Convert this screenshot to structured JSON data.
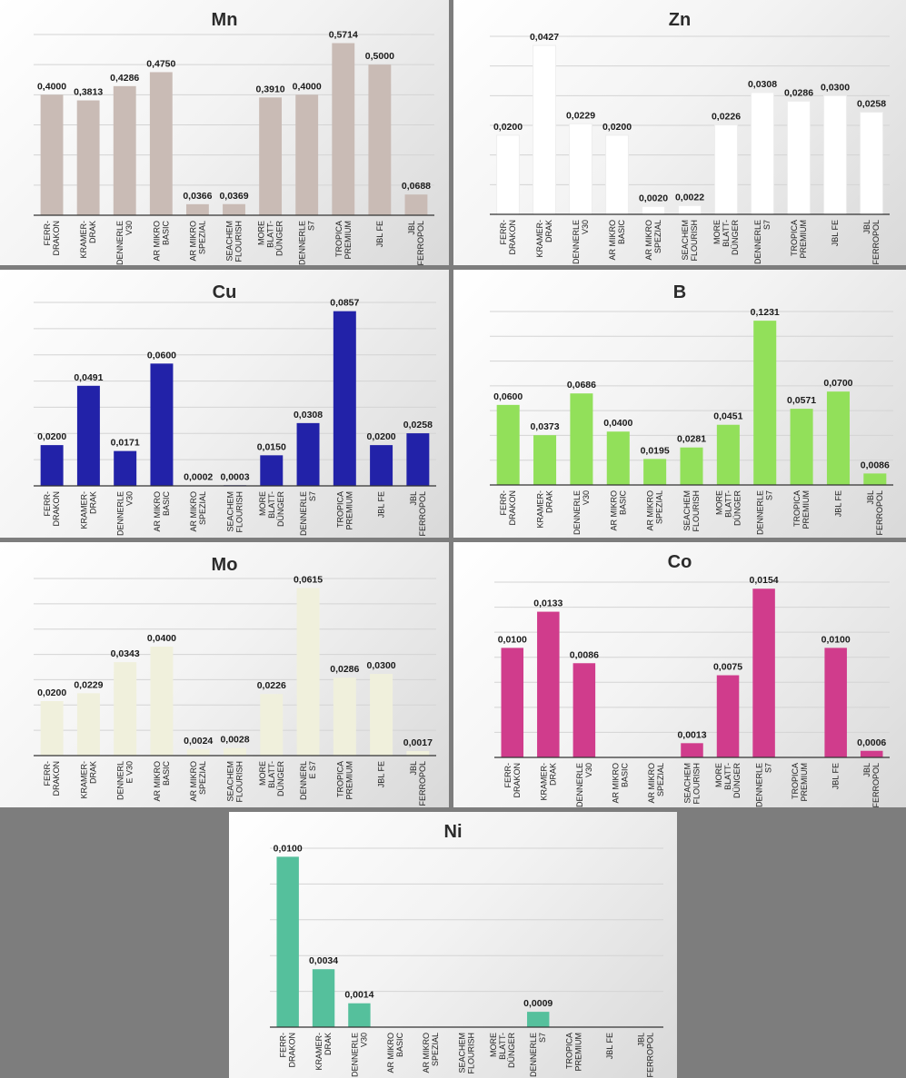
{
  "chart_data": [
    {
      "type": "bar",
      "title": "Mn",
      "color": "#c9bbb5",
      "categories": [
        [
          "FERR-",
          "DRAKON"
        ],
        [
          "KRAMER-",
          "DRAK"
        ],
        [
          "DENNERLE",
          "V30"
        ],
        [
          "AR MIKRO",
          "BASIC"
        ],
        [
          "AR MIKRO",
          "SPEZIAL"
        ],
        [
          "SEACHEM",
          "FLOURISH"
        ],
        [
          "MORE",
          "BLATT-",
          "DÜNGER"
        ],
        [
          "DENNERLE",
          "S7"
        ],
        [
          "TROPICA",
          "PREMIUM"
        ],
        [
          "JBL FE"
        ],
        [
          "JBL",
          "FERROPOL"
        ]
      ],
      "values": [
        0.4,
        0.3813,
        0.4286,
        0.475,
        0.0366,
        0.0369,
        0.391,
        0.4,
        0.5714,
        0.5,
        0.0688
      ],
      "labels": [
        "0,4000",
        "0,3813",
        "0,4286",
        "0,4750",
        "0,0366",
        "0,0369",
        "0,3910",
        "0,4000",
        "0,5714",
        "0,5000",
        "0,0688"
      ],
      "ylim": [
        0,
        0.6
      ],
      "grid": true
    },
    {
      "type": "bar",
      "title": "Zn",
      "color": "#ffffff",
      "categories": [
        [
          "FERR-",
          "DRAKON"
        ],
        [
          "KRAMER-",
          "DRAK"
        ],
        [
          "DENNERLE",
          "V30"
        ],
        [
          "AR MIKRO",
          "BASIC"
        ],
        [
          "AR MIKRO",
          "SPEZIAL"
        ],
        [
          "SEACHEM",
          "FLOURISH"
        ],
        [
          "MORE",
          "BLATT-",
          "DÜNGER"
        ],
        [
          "DENNERLE",
          "S7"
        ],
        [
          "TROPICA",
          "PREMIUM"
        ],
        [
          "JBL FE"
        ],
        [
          "JBL",
          "FERROPOL"
        ]
      ],
      "values": [
        0.02,
        0.0427,
        0.0229,
        0.02,
        0.002,
        0.0022,
        0.0226,
        0.0308,
        0.0286,
        0.03,
        0.0258
      ],
      "labels": [
        "0,0200",
        "0,0427",
        "0,0229",
        "0,0200",
        "0,0020",
        "0,0022",
        "0,0226",
        "0,0308",
        "0,0286",
        "0,0300",
        "0,0258"
      ],
      "ylim": [
        0,
        0.045
      ],
      "grid": true
    },
    {
      "type": "bar",
      "title": "Cu",
      "color": "#2222a8",
      "categories": [
        [
          "FERR-",
          "DRAKON"
        ],
        [
          "KRAMER-",
          "DRAK"
        ],
        [
          "DENNERLE",
          "V30"
        ],
        [
          "AR MIKRO",
          "BASIC"
        ],
        [
          "AR MIKRO",
          "SPEZIAL"
        ],
        [
          "SEACHEM",
          "FLOURISH"
        ],
        [
          "MORE",
          "BLATT-",
          "DÜNGER"
        ],
        [
          "DENNERLE",
          "S7"
        ],
        [
          "TROPICA",
          "PREMIUM"
        ],
        [
          "JBL FE"
        ],
        [
          "JBL",
          "FERROPOL"
        ]
      ],
      "values": [
        0.02,
        0.0491,
        0.0171,
        0.06,
        0.0002,
        0.0003,
        0.015,
        0.0308,
        0.0857,
        0.02,
        0.0258
      ],
      "labels": [
        "0,0200",
        "0,0491",
        "0,0171",
        "0,0600",
        "0,0002",
        "0,0003",
        "0,0150",
        "0,0308",
        "0,0857",
        "0,0200",
        "0,0258"
      ],
      "ylim": [
        0,
        0.09
      ],
      "grid": true
    },
    {
      "type": "bar",
      "title": "B",
      "color": "#92e05a",
      "categories": [
        [
          "FERR-",
          "DRAKON"
        ],
        [
          "KRAMER-",
          "DRAK"
        ],
        [
          "DENNERLE",
          "V30"
        ],
        [
          "AR MIKRO",
          "BASIC"
        ],
        [
          "AR MIKRO",
          "SPEZIAL"
        ],
        [
          "SEACHEM",
          "FLOURISH"
        ],
        [
          "MORE",
          "BLATT-",
          "DÜNGER"
        ],
        [
          "DENNERLE",
          "S7"
        ],
        [
          "TROPICA",
          "PREMIUM"
        ],
        [
          "JBL FE"
        ],
        [
          "JBL",
          "FERROPOL"
        ]
      ],
      "values": [
        0.06,
        0.0373,
        0.0686,
        0.04,
        0.0195,
        0.0281,
        0.0451,
        0.1231,
        0.0571,
        0.07,
        0.0086
      ],
      "labels": [
        "0,0600",
        "0,0373",
        "0,0686",
        "0,0400",
        "0,0195",
        "0,0281",
        "0,0451",
        "0,1231",
        "0,0571",
        "0,0700",
        "0,0086"
      ],
      "ylim": [
        0,
        0.13
      ],
      "grid": true
    },
    {
      "type": "bar",
      "title": "Mo",
      "color": "#f0f0dc",
      "categories": [
        [
          "FERR-",
          "DRAKON"
        ],
        [
          "KRAMER-",
          "DRAK"
        ],
        [
          "DENNERL",
          "E V30"
        ],
        [
          "AR MIKRO",
          "BASIC"
        ],
        [
          "AR MIKRO",
          "SPEZIAL"
        ],
        [
          "SEACHEM",
          "FLOURISH"
        ],
        [
          "MORE",
          "BLATT-",
          "DÜNGER"
        ],
        [
          "DENNERL",
          "E S7"
        ],
        [
          "TROPICA",
          "PREMIUM"
        ],
        [
          "JBL FE"
        ],
        [
          "JBL",
          "FERROPOL"
        ]
      ],
      "values": [
        0.02,
        0.0229,
        0.0343,
        0.04,
        0.0024,
        0.0028,
        0.0226,
        0.0615,
        0.0286,
        0.03,
        0.0017
      ],
      "labels": [
        "0,0200",
        "0,0229",
        "0,0343",
        "0,0400",
        "0,0024",
        "0,0028",
        "0,0226",
        "0,0615",
        "0,0286",
        "0,0300",
        "0,0017"
      ],
      "ylim": [
        0,
        0.065
      ],
      "grid": true
    },
    {
      "type": "bar",
      "title": "Co",
      "color": "#d03c8c",
      "categories": [
        [
          "FERR-",
          "DRAKON"
        ],
        [
          "KRAMER-",
          "DRAK"
        ],
        [
          "DENNERLE",
          "V30"
        ],
        [
          "AR MIKRO",
          "BASIC"
        ],
        [
          "AR MIKRO",
          "SPEZIAL"
        ],
        [
          "SEACHEM",
          "FLOURISH"
        ],
        [
          "MORE",
          "BLATT-",
          "DÜNGER"
        ],
        [
          "DENNERLE",
          "S7"
        ],
        [
          "TROPICA",
          "PREMIUM"
        ],
        [
          "JBL FE"
        ],
        [
          "JBL",
          "FERROPOL"
        ]
      ],
      "values": [
        0.01,
        0.0133,
        0.0086,
        null,
        null,
        0.0013,
        0.0075,
        0.0154,
        null,
        0.01,
        0.0006
      ],
      "labels": [
        "0,0100",
        "0,0133",
        "0,0086",
        "",
        "",
        "0,0013",
        "0,0075",
        "0,0154",
        "",
        "0,0100",
        "0,0006"
      ],
      "ylim": [
        0,
        0.016
      ],
      "grid": true
    },
    {
      "type": "bar",
      "title": "Ni",
      "color": "#55c09c",
      "categories": [
        [
          "FERR-",
          "DRAKON"
        ],
        [
          "KRAMER-",
          "DRAK"
        ],
        [
          "DENNERLE",
          "V30"
        ],
        [
          "AR MIKRO",
          "BASIC"
        ],
        [
          "AR MIKRO",
          "SPEZIAL"
        ],
        [
          "SEACHEM",
          "FLOURISH"
        ],
        [
          "MORE",
          "BLATT-",
          "DÜNGER"
        ],
        [
          "DENNERLE",
          "S7"
        ],
        [
          "TROPICA",
          "PREMIUM"
        ],
        [
          "JBL FE"
        ],
        [
          "JBL",
          "FERROPOL"
        ]
      ],
      "values": [
        0.01,
        0.0034,
        0.0014,
        null,
        null,
        null,
        null,
        0.0009,
        null,
        null,
        null
      ],
      "labels": [
        "0,0100",
        "0,0034",
        "0,0014",
        "",
        "",
        "",
        "",
        "0,0009",
        "",
        "",
        ""
      ],
      "ylim": [
        0,
        0.0105
      ],
      "grid": true
    }
  ]
}
